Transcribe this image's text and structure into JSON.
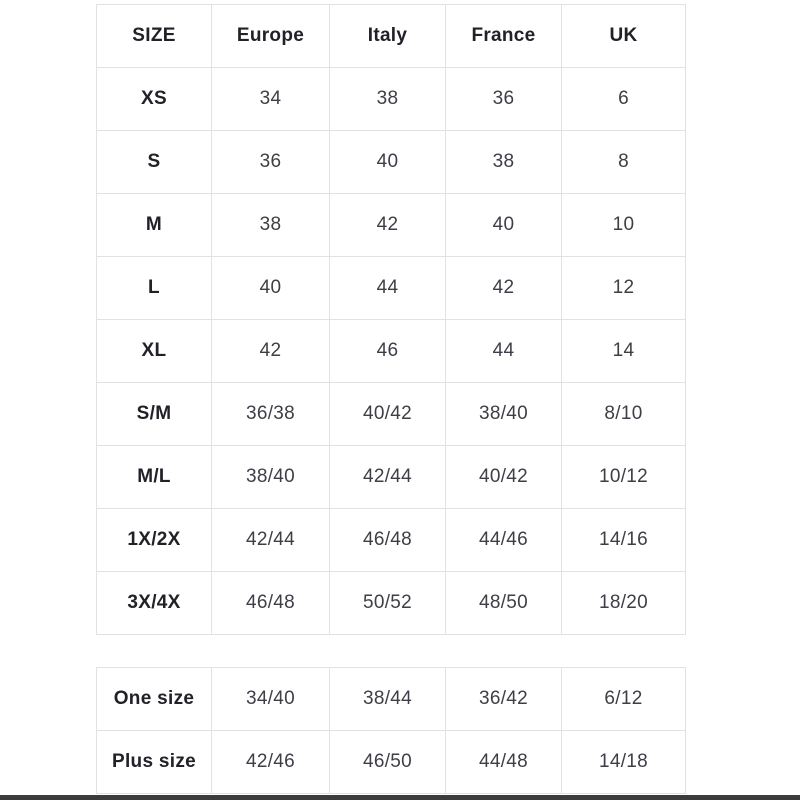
{
  "page": {
    "background": "#ffffff",
    "border_color": "#e2e2e2",
    "header_text_color": "#212128",
    "value_text_color": "#3e3e46",
    "bottom_bar_color": "#3c3c3c"
  },
  "main_table": {
    "headers": [
      "SIZE",
      "Europe",
      "Italy",
      "France",
      "UK"
    ],
    "rows": [
      {
        "label": "XS",
        "values": [
          "34",
          "38",
          "36",
          "6"
        ]
      },
      {
        "label": "S",
        "values": [
          "36",
          "40",
          "38",
          "8"
        ]
      },
      {
        "label": "M",
        "values": [
          "38",
          "42",
          "40",
          "10"
        ]
      },
      {
        "label": "L",
        "values": [
          "40",
          "44",
          "42",
          "12"
        ]
      },
      {
        "label": "XL",
        "values": [
          "42",
          "46",
          "44",
          "14"
        ]
      },
      {
        "label": "S/M",
        "values": [
          "36/38",
          "40/42",
          "38/40",
          "8/10"
        ]
      },
      {
        "label": "M/L",
        "values": [
          "38/40",
          "42/44",
          "40/42",
          "10/12"
        ]
      },
      {
        "label": "1X/2X",
        "values": [
          "42/44",
          "46/48",
          "44/46",
          "14/16"
        ]
      },
      {
        "label": "3X/4X",
        "values": [
          "46/48",
          "50/52",
          "48/50",
          "18/20"
        ]
      }
    ]
  },
  "extra_table": {
    "rows": [
      {
        "label": "One size",
        "values": [
          "34/40",
          "38/44",
          "36/42",
          "6/12"
        ]
      },
      {
        "label": "Plus size",
        "values": [
          "42/46",
          "46/50",
          "44/48",
          "14/18"
        ]
      }
    ]
  }
}
